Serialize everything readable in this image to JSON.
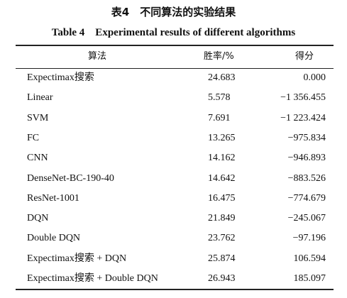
{
  "title_cn": "表4　不同算法的实验结果",
  "title_en": "Table 4　Experimental results of different algorithms",
  "table": {
    "header": [
      "算法",
      "胜率/%",
      "得分"
    ],
    "rows": [
      [
        "Expectimax搜索",
        "24.683",
        "0.000"
      ],
      [
        "Linear",
        "5.578",
        "−1 356.455"
      ],
      [
        "SVM",
        "7.691",
        "−1 223.424"
      ],
      [
        "FC",
        "13.265",
        "−975.834"
      ],
      [
        "CNN",
        "14.162",
        "−946.893"
      ],
      [
        "DenseNet-BC-190-40",
        "14.642",
        "−883.526"
      ],
      [
        "ResNet-1001",
        "16.475",
        "−774.679"
      ],
      [
        "DQN",
        "21.849",
        "−245.067"
      ],
      [
        "Double DQN",
        "23.762",
        "−97.196"
      ],
      [
        "Expectimax搜索 + DQN",
        "25.874",
        "106.594"
      ],
      [
        "Expectimax搜索 + Double DQN",
        "26.943",
        "185.097"
      ]
    ]
  }
}
